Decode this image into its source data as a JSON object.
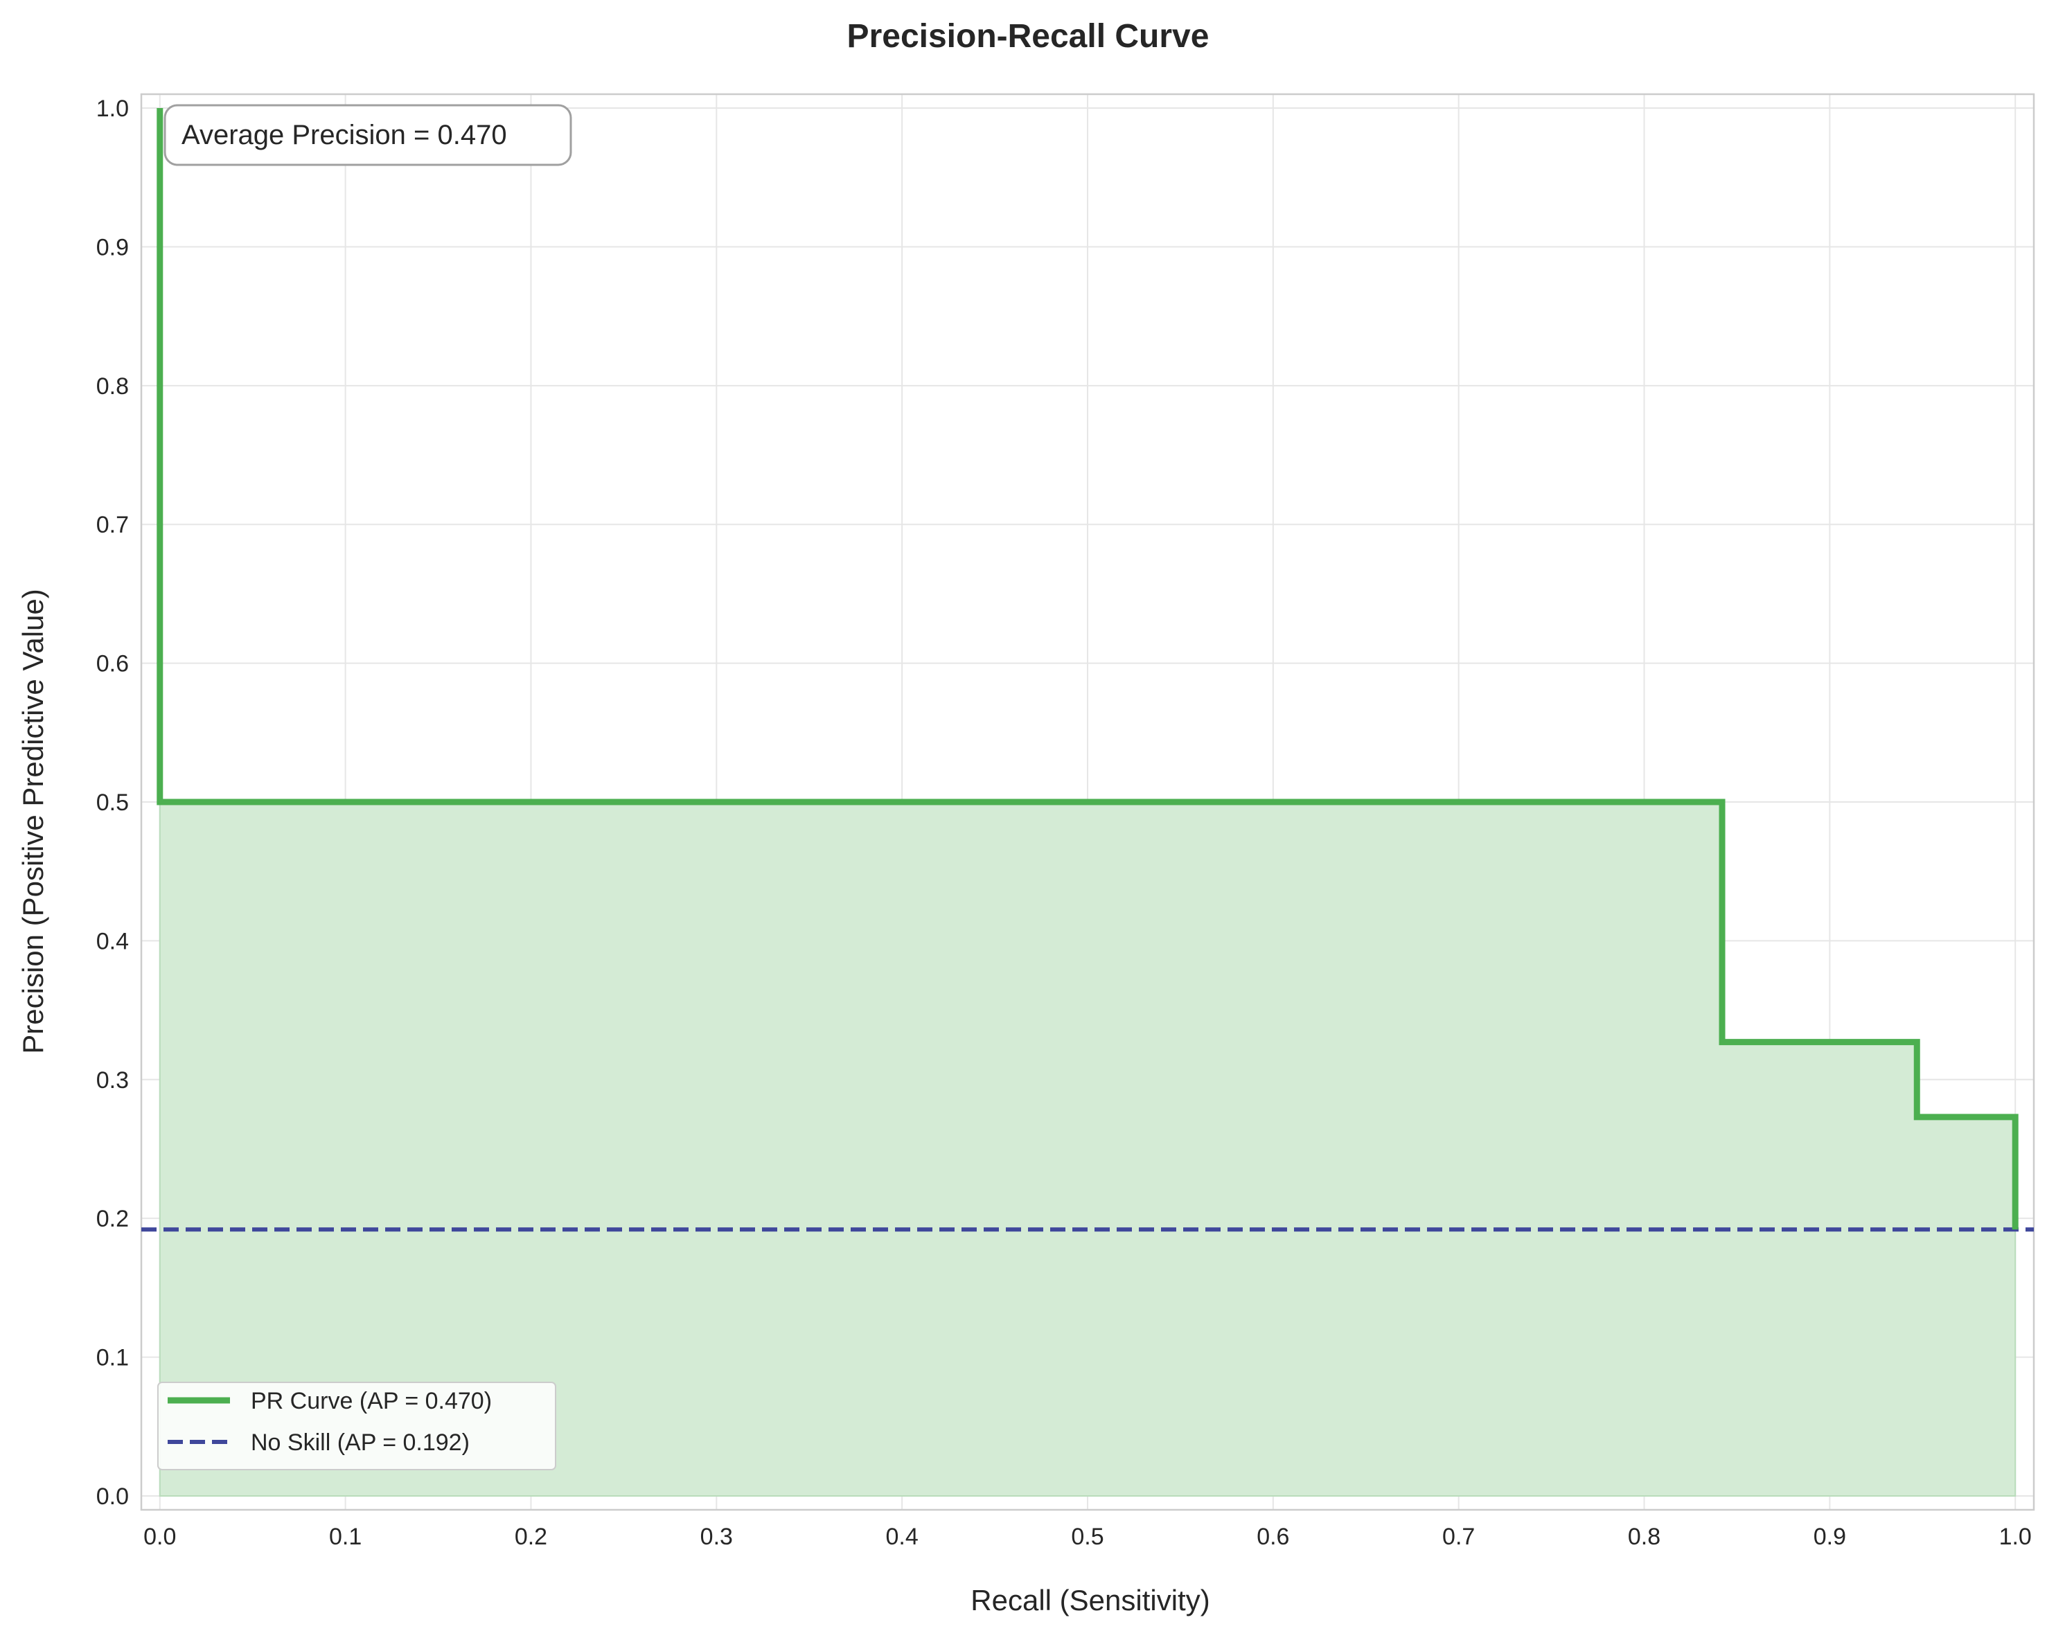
{
  "chart_data": {
    "type": "line",
    "title": "Precision-Recall Curve",
    "xlabel": "Recall (Sensitivity)",
    "ylabel": "Precision (Positive Predictive Value)",
    "xlim": [
      -0.01,
      1.01
    ],
    "ylim": [
      -0.01,
      1.01
    ],
    "xticks": [
      0.0,
      0.1,
      0.2,
      0.3,
      0.4,
      0.5,
      0.6,
      0.7,
      0.8,
      0.9,
      1.0
    ],
    "yticks": [
      0.0,
      0.1,
      0.2,
      0.3,
      0.4,
      0.5,
      0.6,
      0.7,
      0.8,
      0.9,
      1.0
    ],
    "xtick_labels": [
      "0.0",
      "0.1",
      "0.2",
      "0.3",
      "0.4",
      "0.5",
      "0.6",
      "0.7",
      "0.8",
      "0.9",
      "1.0"
    ],
    "ytick_labels": [
      "0.0",
      "0.1",
      "0.2",
      "0.3",
      "0.4",
      "0.5",
      "0.6",
      "0.7",
      "0.8",
      "0.9",
      "1.0"
    ],
    "grid": true,
    "legend_position": "lower-left",
    "annotation": "Average Precision = 0.470",
    "series": [
      {
        "name": "PR Curve (AP = 0.470)",
        "style": "solid",
        "color": "#4caf50",
        "fill": true,
        "fill_color": "#d4ebd5",
        "x": [
          0.0,
          0.0,
          0.842,
          0.842,
          0.947,
          0.947,
          1.0,
          1.0
        ],
        "y": [
          1.0,
          0.5,
          0.5,
          0.327,
          0.327,
          0.273,
          0.273,
          0.192
        ]
      },
      {
        "name": "No Skill (AP = 0.192)",
        "style": "dashed",
        "color": "#3f479b",
        "y_constant": 0.192
      }
    ]
  }
}
